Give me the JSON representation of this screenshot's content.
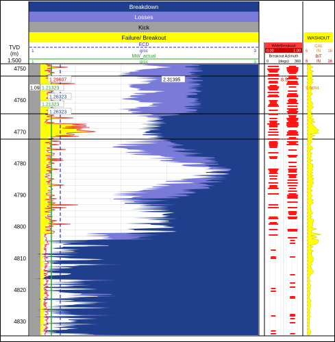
{
  "header": {
    "bands": [
      {
        "label": "Breakdown",
        "bg": "#1f3e8c",
        "fg": "#ffffff"
      },
      {
        "label": "Losses",
        "bg": "#7a7ad9",
        "fg": "#ffffff"
      },
      {
        "label": "Kick",
        "bg": "#a0a0a0",
        "fg": "#000000"
      },
      {
        "label": "Failure/ Breakout",
        "bg": "#ffff00",
        "fg": "#000000"
      }
    ],
    "ecd": {
      "label": "ECD",
      "unit": "g/cc",
      "min": "1",
      "max": "3"
    },
    "mw": {
      "label": "MW_actual",
      "unit": "g/cc",
      "min": "1",
      "max": "3"
    }
  },
  "depth_track": {
    "title": "TVD",
    "unit": "(m)",
    "scale": "1:500",
    "ticks": [
      "4750",
      "4760",
      "4770",
      "4780",
      "4790",
      "4800",
      "4810",
      "4820",
      "4830"
    ]
  },
  "breakout_track": {
    "title": "WideBreakout",
    "range_min": "0.00",
    "range_max": "1.00",
    "azimuth_label": "Breakout Azimuth",
    "azimuth_min": "0",
    "azimuth_unit": "(degs)",
    "azimuth_max": "360",
    "value": "8.5"
  },
  "washout_track": {
    "title": "WASHOUT",
    "cal_label": "CAL",
    "cal_min": "6",
    "cal_unit": "IN",
    "cal_max": "16",
    "bit_label": "BIT",
    "bit_min": "6",
    "bit_unit": "IN",
    "bit_max": "16",
    "value": "9.9694"
  },
  "annotations": [
    {
      "text": "1.29607",
      "color": "#cc0000"
    },
    {
      "text": "2.31395",
      "color": "#000000"
    },
    {
      "text": "1.09",
      "color": "#000000"
    },
    {
      "text": "1.21323",
      "color": "#2a9d2a"
    },
    {
      "text": "1.26323",
      "color": "#1f3e8c"
    },
    {
      "text": "1.21323",
      "color": "#2a9d2a"
    },
    {
      "text": "1.26323",
      "color": "#1f3e8c"
    }
  ],
  "colors": {
    "breakdown": "#1f3e8c",
    "losses": "#7a7ad9",
    "kick": "#a0a0a0",
    "failure": "#ffff00",
    "ecd_curve": "#2a2ad9",
    "mw_curve": "#22aa22",
    "breakout_fill": "#ff0000",
    "washout_fill": "#ffff00"
  }
}
